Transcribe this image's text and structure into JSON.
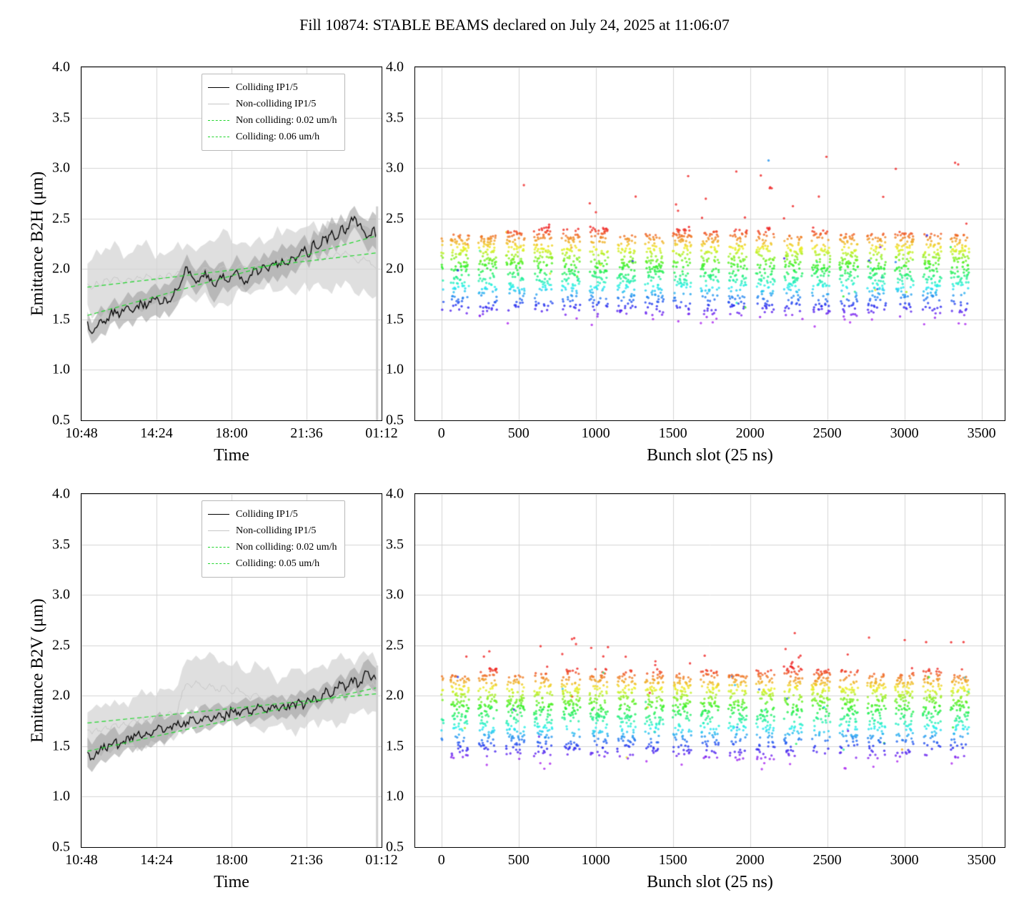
{
  "title": "Fill 10874: STABLE BEAMS declared on July 24, 2025 at 11:06:07",
  "accent_green": "#1fd62b",
  "chart_data": [
    {
      "id": "b2h-time",
      "type": "line",
      "xlabel": "Time",
      "ylabel": "Emittance B2H (μm)",
      "ylim": [
        0.5,
        4.0
      ],
      "y_tick_labels": [
        "0.5",
        "1.0",
        "1.5",
        "2.0",
        "2.5",
        "3.0",
        "3.5",
        "4.0"
      ],
      "x_ticks": [
        {
          "label": "10:48",
          "pos": 0.0
        },
        {
          "label": "14:24",
          "pos": 0.25
        },
        {
          "label": "18:00",
          "pos": 0.5
        },
        {
          "label": "21:36",
          "pos": 0.75
        },
        {
          "label": "01:12",
          "pos": 1.0
        }
      ],
      "x_range": [
        0.02,
        0.985
      ],
      "seed": 101,
      "end_spike": 2.62,
      "series": {
        "colliding": {
          "label": "Colliding IP1/5",
          "color": "#000000",
          "band": 0.13,
          "y": [
            1.48,
            1.36,
            1.42,
            1.5,
            1.46,
            1.55,
            1.6,
            1.52,
            1.58,
            1.63,
            1.57,
            1.64,
            1.66,
            1.61,
            1.67,
            1.7,
            1.65,
            1.72,
            1.68,
            1.74,
            1.8,
            1.9,
            2.02,
            1.93,
            1.86,
            1.92,
            1.98,
            1.88,
            1.83,
            1.9,
            1.95,
            1.87,
            1.93,
            1.99,
            1.92,
            1.88,
            1.94,
            2.0,
            1.96,
            2.04,
            1.98,
            2.06,
            2.02,
            2.1,
            2.05,
            2.12,
            2.08,
            2.16,
            2.22,
            2.12,
            2.28,
            2.2,
            2.32,
            2.26,
            2.38,
            2.3,
            2.42,
            2.35,
            2.46,
            2.52,
            2.44,
            2.38,
            2.32,
            2.4,
            2.35
          ]
        },
        "noncolliding": {
          "label": "Non-colliding IP1/5",
          "color": "#c6c6c6",
          "band": 0.3,
          "y": [
            1.85,
            1.8,
            1.88,
            1.83,
            1.9,
            1.86,
            1.92,
            1.88,
            1.85,
            1.91,
            1.87,
            1.93,
            1.9,
            1.95,
            1.92,
            1.88,
            1.94,
            1.91,
            1.96,
            1.93,
            1.98,
            1.95,
            2.0,
            1.96,
            1.92,
            1.97,
            2.01,
            1.98,
            1.94,
            1.99,
            2.03,
            2.0,
            1.96,
            2.01,
            2.05,
            2.02,
            1.98,
            2.03,
            2.06,
            2.02,
            2.08,
            2.04,
            2.1,
            2.06,
            2.12,
            2.08,
            2.05,
            2.1,
            2.14,
            2.1,
            2.16,
            2.12,
            2.08,
            2.14,
            2.1,
            2.16,
            2.12,
            2.18,
            2.14,
            2.1,
            2.06,
            2.12,
            2.08,
            2.04,
            2.0
          ]
        },
        "fits": [
          {
            "label": "Non colliding: 0.02 um/h",
            "color": "#1fd62b",
            "y_start": 1.82,
            "y_end": 2.16
          },
          {
            "label": "Colliding: 0.06 um/h",
            "color": "#1fd62b",
            "y_start": 1.54,
            "y_end": 2.33
          }
        ]
      },
      "legend": [
        {
          "label": "Colliding IP1/5",
          "color": "#000000",
          "dash": false
        },
        {
          "label": "Non-colliding IP1/5",
          "color": "#c6c6c6",
          "dash": false
        },
        {
          "label": "Non colliding: 0.02 um/h",
          "color": "#1fd62b",
          "dash": true
        },
        {
          "label": "Colliding: 0.06 um/h",
          "color": "#1fd62b",
          "dash": true
        }
      ]
    },
    {
      "id": "b2h-bunch",
      "type": "scatter",
      "xlabel": "Bunch slot (25 ns)",
      "ylabel": "",
      "xlim": [
        -170,
        3650
      ],
      "ylim": [
        0.5,
        4.0
      ],
      "y_tick_labels": [
        "0.5",
        "1.0",
        "1.5",
        "2.0",
        "2.5",
        "3.0",
        "3.5",
        "4.0"
      ],
      "x_ticks": [
        {
          "label": "0"
        },
        {
          "label": "500"
        },
        {
          "label": "1000"
        },
        {
          "label": "1500"
        },
        {
          "label": "2000"
        },
        {
          "label": "2500"
        },
        {
          "label": "3000"
        },
        {
          "label": "3500"
        }
      ],
      "seed": 42,
      "core_range": [
        1.52,
        2.38
      ],
      "color_range": [
        1.5,
        2.4
      ],
      "outlier_rate": 0.02,
      "outlier_add": 0.75,
      "trains": [
        {
          "start": 0,
          "n": 14
        },
        {
          "start": 60,
          "n": 120
        },
        {
          "start": 240,
          "n": 120
        },
        {
          "start": 420,
          "n": 120
        },
        {
          "start": 600,
          "n": 120
        },
        {
          "start": 780,
          "n": 120
        },
        {
          "start": 960,
          "n": 120
        },
        {
          "start": 1140,
          "n": 120
        },
        {
          "start": 1320,
          "n": 120
        },
        {
          "start": 1500,
          "n": 120
        },
        {
          "start": 1680,
          "n": 120
        },
        {
          "start": 1860,
          "n": 120
        },
        {
          "start": 2040,
          "n": 120
        },
        {
          "start": 2220,
          "n": 120
        },
        {
          "start": 2400,
          "n": 120
        },
        {
          "start": 2580,
          "n": 120
        },
        {
          "start": 2760,
          "n": 120
        },
        {
          "start": 2940,
          "n": 120
        },
        {
          "start": 3120,
          "n": 120
        },
        {
          "start": 3300,
          "n": 120
        }
      ]
    },
    {
      "id": "b2v-time",
      "type": "line",
      "xlabel": "Time",
      "ylabel": "Emittance B2V (μm)",
      "ylim": [
        0.5,
        4.0
      ],
      "y_tick_labels": [
        "0.5",
        "1.0",
        "1.5",
        "2.0",
        "2.5",
        "3.0",
        "3.5",
        "4.0"
      ],
      "x_ticks": [
        {
          "label": "10:48",
          "pos": 0.0
        },
        {
          "label": "14:24",
          "pos": 0.25
        },
        {
          "label": "18:00",
          "pos": 0.5
        },
        {
          "label": "21:36",
          "pos": 0.75
        },
        {
          "label": "01:12",
          "pos": 1.0
        }
      ],
      "x_range": [
        0.02,
        0.985
      ],
      "seed": 202,
      "end_spike": 2.3,
      "series": {
        "colliding": {
          "label": "Colliding IP1/5",
          "color": "#000000",
          "band": 0.11,
          "y": [
            1.44,
            1.38,
            1.45,
            1.5,
            1.47,
            1.52,
            1.56,
            1.5,
            1.55,
            1.6,
            1.56,
            1.62,
            1.58,
            1.64,
            1.6,
            1.66,
            1.7,
            1.64,
            1.68,
            1.72,
            1.75,
            1.7,
            1.74,
            1.78,
            1.73,
            1.77,
            1.8,
            1.76,
            1.8,
            1.83,
            1.79,
            1.82,
            1.85,
            1.81,
            1.84,
            1.87,
            1.83,
            1.86,
            1.89,
            1.85,
            1.88,
            1.91,
            1.87,
            1.9,
            1.86,
            1.92,
            1.88,
            1.94,
            1.9,
            1.96,
            2.0,
            1.95,
            2.02,
            2.06,
            2.0,
            2.08,
            2.12,
            2.05,
            2.14,
            2.18,
            2.1,
            2.2,
            2.24,
            2.18,
            2.15
          ]
        },
        "noncolliding": {
          "label": "Non-colliding IP1/5",
          "color": "#c6c6c6",
          "band": 0.26,
          "y": [
            1.66,
            1.62,
            1.68,
            1.64,
            1.7,
            1.66,
            1.72,
            1.68,
            1.74,
            1.7,
            1.76,
            1.72,
            1.78,
            1.74,
            1.8,
            1.76,
            1.82,
            1.78,
            1.84,
            1.8,
            1.86,
            2.05,
            2.12,
            2.08,
            2.15,
            2.1,
            2.06,
            2.12,
            2.08,
            2.04,
            2.1,
            2.06,
            2.02,
            2.08,
            2.04,
            2.0,
            1.96,
            2.02,
            1.98,
            1.94,
            1.99,
            1.95,
            1.91,
            1.96,
            1.92,
            1.97,
            1.93,
            1.98,
            1.94,
            1.99,
            2.02,
            1.98,
            2.04,
            2.0,
            2.06,
            2.02,
            2.08,
            2.04,
            2.1,
            2.06,
            2.12,
            2.16,
            2.1,
            2.14,
            2.08
          ]
        },
        "fits": [
          {
            "label": "Non colliding: 0.02 um/h",
            "color": "#1fd62b",
            "y_start": 1.73,
            "y_end": 2.02
          },
          {
            "label": "Colliding: 0.05 um/h",
            "color": "#1fd62b",
            "y_start": 1.45,
            "y_end": 2.08
          }
        ]
      },
      "legend": [
        {
          "label": "Colliding IP1/5",
          "color": "#000000",
          "dash": false
        },
        {
          "label": "Non-colliding IP1/5",
          "color": "#c6c6c6",
          "dash": false
        },
        {
          "label": "Non colliding: 0.02 um/h",
          "color": "#1fd62b",
          "dash": true
        },
        {
          "label": "Colliding: 0.05 um/h",
          "color": "#1fd62b",
          "dash": true
        }
      ]
    },
    {
      "id": "b2v-bunch",
      "type": "scatter",
      "xlabel": "Bunch slot (25 ns)",
      "ylabel": "",
      "xlim": [
        -170,
        3650
      ],
      "ylim": [
        0.5,
        4.0
      ],
      "y_tick_labels": [
        "0.5",
        "1.0",
        "1.5",
        "2.0",
        "2.5",
        "3.0",
        "3.5",
        "4.0"
      ],
      "x_ticks": [
        {
          "label": "0"
        },
        {
          "label": "500"
        },
        {
          "label": "1000"
        },
        {
          "label": "1500"
        },
        {
          "label": "2000"
        },
        {
          "label": "2500"
        },
        {
          "label": "3000"
        },
        {
          "label": "3500"
        }
      ],
      "seed": 7,
      "core_range": [
        1.38,
        2.25
      ],
      "color_range": [
        1.35,
        2.27
      ],
      "outlier_rate": 0.012,
      "outlier_add": 0.38,
      "trains": [
        {
          "start": 0,
          "n": 14
        },
        {
          "start": 60,
          "n": 120
        },
        {
          "start": 240,
          "n": 120
        },
        {
          "start": 420,
          "n": 120
        },
        {
          "start": 600,
          "n": 120
        },
        {
          "start": 780,
          "n": 120
        },
        {
          "start": 960,
          "n": 120
        },
        {
          "start": 1140,
          "n": 120
        },
        {
          "start": 1320,
          "n": 120
        },
        {
          "start": 1500,
          "n": 120
        },
        {
          "start": 1680,
          "n": 120
        },
        {
          "start": 1860,
          "n": 120
        },
        {
          "start": 2040,
          "n": 120
        },
        {
          "start": 2220,
          "n": 120
        },
        {
          "start": 2400,
          "n": 120
        },
        {
          "start": 2580,
          "n": 120
        },
        {
          "start": 2760,
          "n": 120
        },
        {
          "start": 2940,
          "n": 120
        },
        {
          "start": 3120,
          "n": 120
        },
        {
          "start": 3300,
          "n": 120
        }
      ]
    }
  ]
}
